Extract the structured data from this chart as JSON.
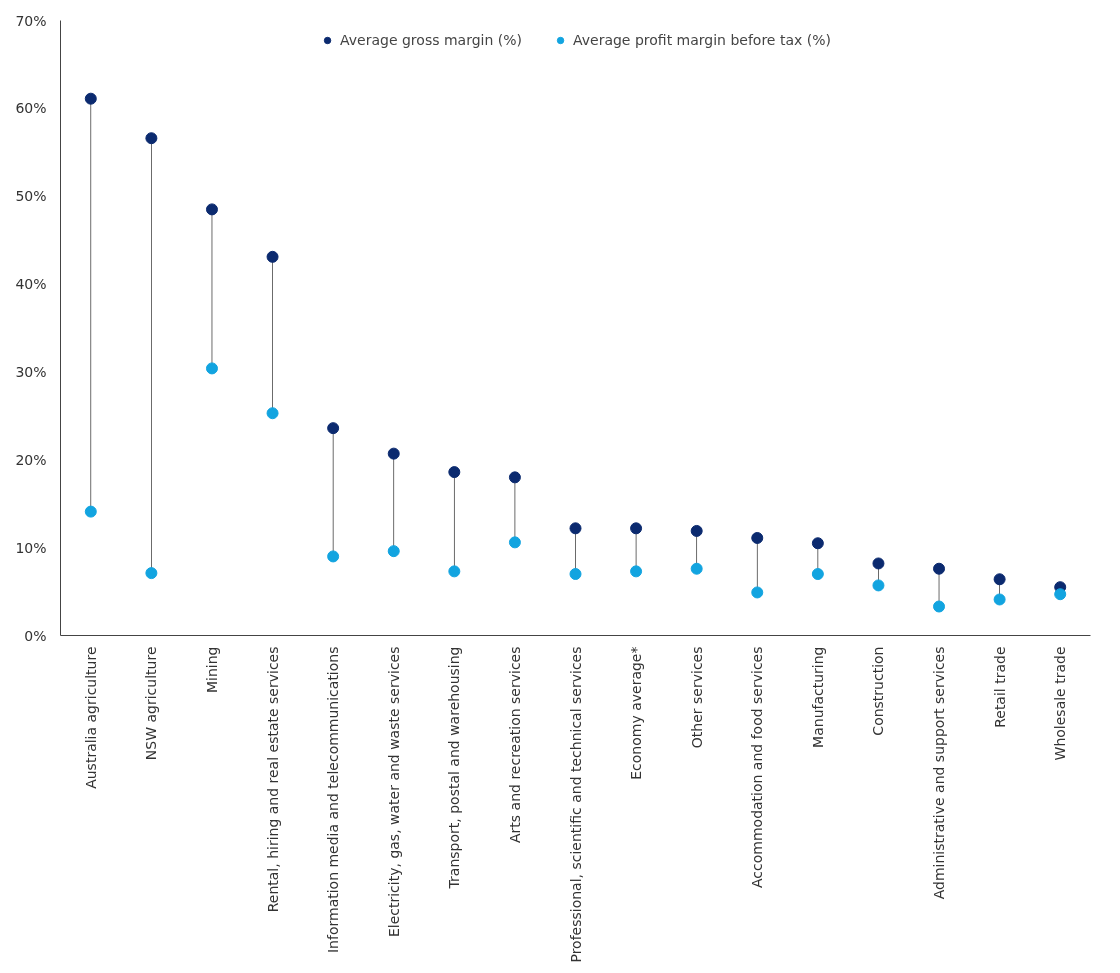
{
  "chart_data": {
    "type": "scatter",
    "categories": [
      "Australia agriculture",
      "NSW agriculture",
      "Mining",
      "Rental, hiring and real estate services",
      "Information media and telecommunications",
      "Electricity, gas, water and waste services",
      "Transport, postal and warehousing",
      "Arts and recreation services",
      "Professional, scientific and technical services",
      "Economy average*",
      "Other services",
      "Accommodation and food services",
      "Manufacturing",
      "Construction",
      "Administrative and support services",
      "Retail trade",
      "Wholesale trade"
    ],
    "series": [
      {
        "name": "Average gross margin (%)",
        "color": "#0b2a6f",
        "values": [
          61.1,
          56.6,
          48.5,
          43.1,
          23.6,
          20.7,
          18.6,
          18.0,
          12.2,
          12.2,
          11.9,
          11.1,
          10.5,
          8.2,
          7.6,
          6.4,
          5.5
        ]
      },
      {
        "name": "Average profit margin before tax (%)",
        "color": "#12a4e0",
        "values": [
          14.1,
          7.1,
          30.4,
          25.3,
          9.0,
          9.6,
          7.3,
          10.6,
          7.0,
          7.3,
          7.6,
          4.9,
          7.0,
          5.7,
          3.3,
          4.1,
          4.7
        ]
      }
    ],
    "ylim": [
      0,
      70
    ],
    "yticks": [
      {
        "value": 0,
        "label": "0%"
      },
      {
        "value": 10,
        "label": "10%"
      },
      {
        "value": 20,
        "label": "20%"
      },
      {
        "value": 30,
        "label": "30%"
      },
      {
        "value": 40,
        "label": "40%"
      },
      {
        "value": 50,
        "label": "50%"
      },
      {
        "value": 60,
        "label": "60%"
      },
      {
        "value": 70,
        "label": "70%"
      }
    ],
    "grid": false,
    "legend": "top",
    "marker": "circle"
  }
}
